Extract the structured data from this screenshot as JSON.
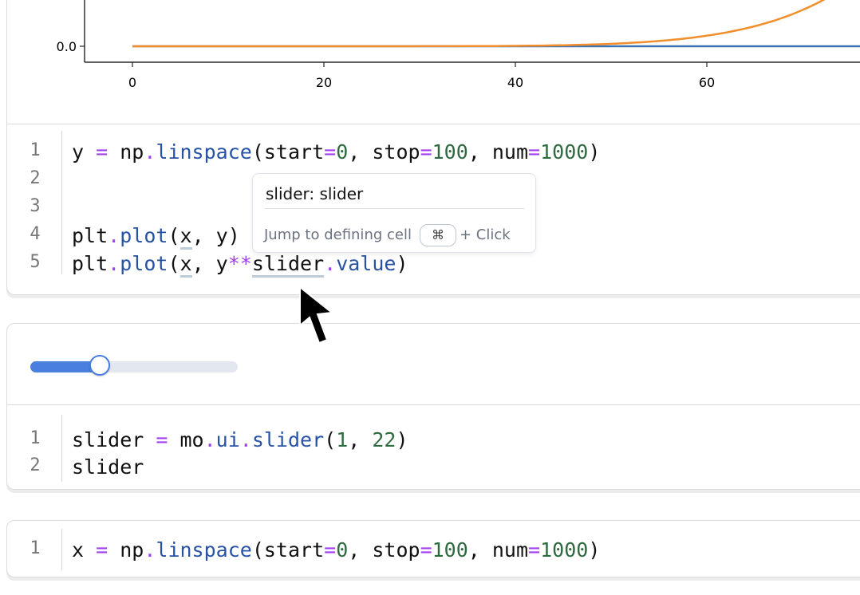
{
  "colors": {
    "series1": "#3b74b4",
    "series2": "#f28e2b",
    "slider_fill": "#4a7fe0",
    "slider_track": "#e3e7ee"
  },
  "chart_data": {
    "type": "line",
    "x_ticks": [
      "0",
      "20",
      "40",
      "60"
    ],
    "y_ticks": [
      "0.0"
    ],
    "xlim": [
      0,
      100
    ],
    "series": [
      {
        "color": "#3b74b4",
        "expr": "y",
        "x_range": [
          0,
          100
        ],
        "power": 1
      },
      {
        "color": "#f28e2b",
        "expr": "y**slider.value",
        "x_range": [
          0,
          100
        ],
        "power": 8
      }
    ]
  },
  "cells": [
    {
      "lines": [
        [
          [
            "y ",
            ""
          ],
          [
            "=",
            "op"
          ],
          [
            " np",
            ""
          ],
          [
            ".",
            "op"
          ],
          [
            "linspace",
            "fn"
          ],
          [
            "(start",
            ""
          ],
          [
            "=",
            "op"
          ],
          [
            "0",
            "num"
          ],
          [
            ", stop",
            ""
          ],
          [
            "=",
            "op"
          ],
          [
            "100",
            "num"
          ],
          [
            ", num",
            ""
          ],
          [
            "=",
            "op"
          ],
          [
            "1000",
            "num"
          ],
          [
            ")",
            ""
          ]
        ],
        [],
        [],
        [
          [
            "plt",
            ""
          ],
          [
            ".",
            "op"
          ],
          [
            "plot",
            "fn"
          ],
          [
            "(",
            ""
          ],
          [
            "x",
            "ul"
          ],
          [
            ", y)",
            ""
          ]
        ],
        [
          [
            "plt",
            ""
          ],
          [
            ".",
            "op"
          ],
          [
            "plot",
            "fn"
          ],
          [
            "(",
            ""
          ],
          [
            "x",
            "ul"
          ],
          [
            ", y",
            ""
          ],
          [
            "**",
            "op"
          ],
          [
            "slider",
            "ul"
          ],
          [
            ".",
            "op"
          ],
          [
            "value",
            "fn"
          ],
          [
            ")",
            ""
          ]
        ]
      ]
    },
    {
      "lines": [
        [
          [
            "slider ",
            ""
          ],
          [
            "=",
            "op"
          ],
          [
            " mo",
            ""
          ],
          [
            ".",
            "op"
          ],
          [
            "ui",
            "fn"
          ],
          [
            ".",
            "op"
          ],
          [
            "slider",
            "fn"
          ],
          [
            "(",
            ""
          ],
          [
            "1",
            "num"
          ],
          [
            ", ",
            ""
          ],
          [
            "22",
            "num"
          ],
          [
            ")",
            ""
          ]
        ],
        [
          [
            "slider",
            ""
          ]
        ]
      ]
    },
    {
      "lines": [
        [
          [
            "x ",
            ""
          ],
          [
            "=",
            "op"
          ],
          [
            " np",
            ""
          ],
          [
            ".",
            "op"
          ],
          [
            "linspace",
            "fn"
          ],
          [
            "(start",
            ""
          ],
          [
            "=",
            "op"
          ],
          [
            "0",
            "num"
          ],
          [
            ", stop",
            ""
          ],
          [
            "=",
            "op"
          ],
          [
            "100",
            "num"
          ],
          [
            ", num",
            ""
          ],
          [
            "=",
            "op"
          ],
          [
            "1000",
            "num"
          ],
          [
            ")",
            ""
          ]
        ]
      ]
    }
  ],
  "slider": {
    "min": 1,
    "max": 22,
    "value": 8
  },
  "tooltip": {
    "title": "slider: slider",
    "hint": "Jump to defining cell",
    "key": "⌘",
    "suffix": "+ Click"
  }
}
